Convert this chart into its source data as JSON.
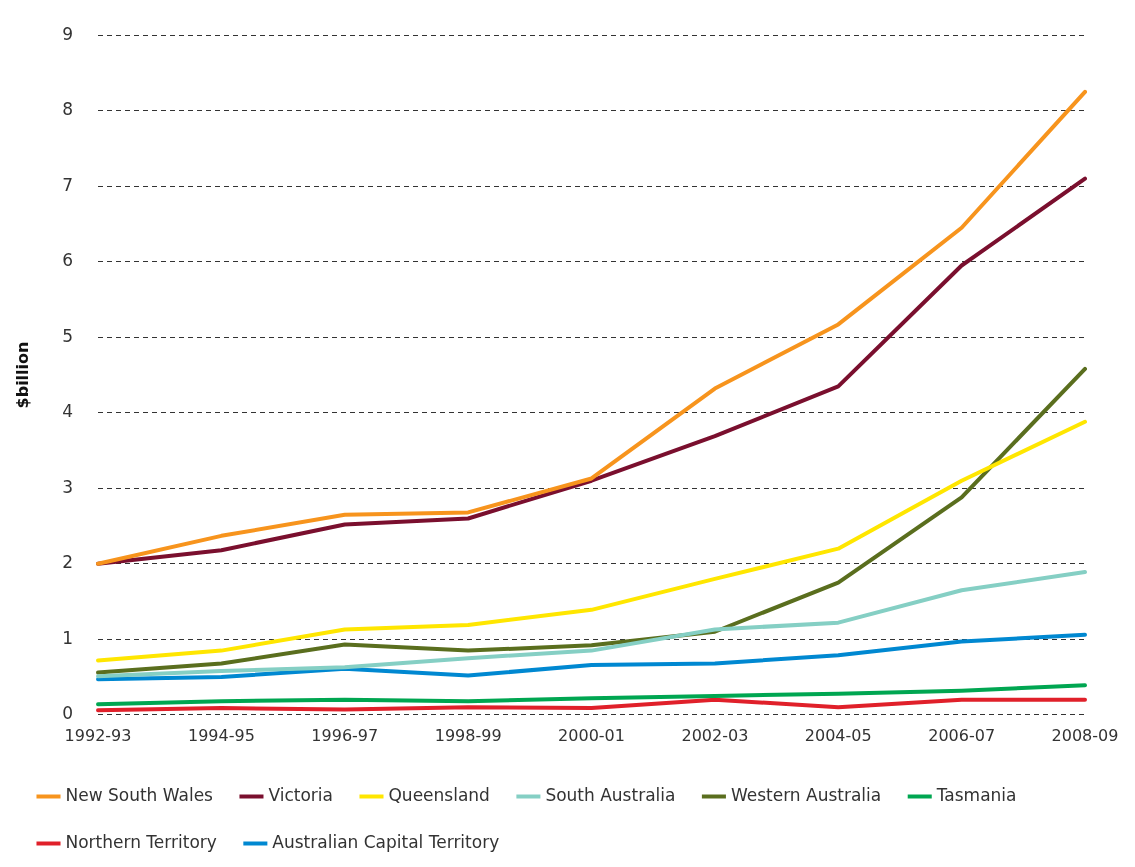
{
  "chart_data": {
    "type": "line",
    "ylabel": "$billion",
    "categories": [
      "1992-93",
      "1994-95",
      "1996-97",
      "1998-99",
      "2000-01",
      "2002-03",
      "2004-05",
      "2006-07",
      "2008-09"
    ],
    "series": [
      {
        "name": "New South Wales",
        "color": "#f7941d",
        "values": [
          2.0,
          2.37,
          2.65,
          2.68,
          3.13,
          4.32,
          5.17,
          6.45,
          8.25
        ]
      },
      {
        "name": "Victoria",
        "color": "#7a0f2e",
        "values": [
          2.0,
          2.18,
          2.52,
          2.6,
          3.1,
          3.69,
          4.35,
          5.95,
          7.1
        ]
      },
      {
        "name": "Queensland",
        "color": "#ffe600",
        "values": [
          0.72,
          0.85,
          1.13,
          1.19,
          1.39,
          1.8,
          2.2,
          3.1,
          3.88
        ]
      },
      {
        "name": "South Australia",
        "color": "#85cfc4",
        "values": [
          0.51,
          0.58,
          0.63,
          0.75,
          0.85,
          1.13,
          1.22,
          1.65,
          1.89
        ]
      },
      {
        "name": "Western Australia",
        "color": "#5a6e1e",
        "values": [
          0.56,
          0.68,
          0.93,
          0.85,
          0.92,
          1.1,
          1.75,
          2.88,
          4.58
        ]
      },
      {
        "name": "Tasmania",
        "color": "#00a651",
        "values": [
          0.14,
          0.18,
          0.2,
          0.18,
          0.22,
          0.25,
          0.28,
          0.32,
          0.39
        ]
      },
      {
        "name": "Northern Territory",
        "color": "#e0202a",
        "values": [
          0.06,
          0.09,
          0.07,
          0.1,
          0.09,
          0.2,
          0.1,
          0.2,
          0.2
        ]
      },
      {
        "name": "Australian Capital Territory",
        "color": "#0088d1",
        "values": [
          0.47,
          0.5,
          0.61,
          0.52,
          0.66,
          0.68,
          0.79,
          0.97,
          1.06
        ]
      }
    ],
    "ylim": [
      0,
      9
    ],
    "yticks": [
      0,
      1,
      2,
      3,
      4,
      5,
      6,
      7,
      8,
      9
    ],
    "grid": "y",
    "legend": "bottom",
    "marker": "none",
    "line_style": "solid"
  }
}
